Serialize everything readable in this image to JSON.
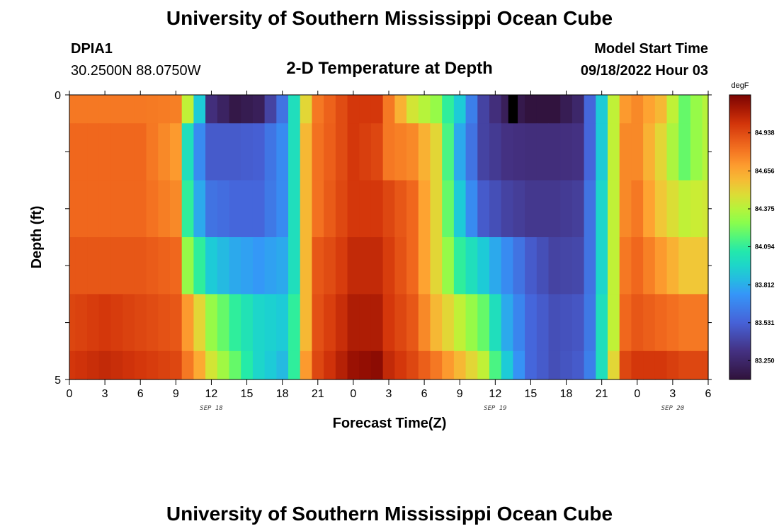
{
  "header": {
    "title": "University of Southern Mississippi Ocean Cube",
    "station_id": "DPIA1",
    "station_coords": "30.2500N  88.0750W",
    "model_start_label": "Model Start Time",
    "model_start_value": "09/18/2022 Hour 03"
  },
  "footer": {
    "title": "University of Southern Mississippi Ocean Cube"
  },
  "chart_data": {
    "type": "heatmap",
    "title": "2-D Temperature at Depth",
    "xlabel": "Forecast Time(Z)",
    "ylabel": "Depth (ft)",
    "colorbar_unit": "degF",
    "colorbar_ticks": [
      "83.250",
      "83.531",
      "83.812",
      "84.094",
      "84.375",
      "84.656",
      "84.938"
    ],
    "colorbar_range": [
      83.11,
      85.22
    ],
    "x_tick_labels": [
      "0",
      "3",
      "6",
      "9",
      "12",
      "15",
      "18",
      "21",
      "0",
      "3",
      "6",
      "9",
      "12",
      "15",
      "18",
      "21",
      "0",
      "3",
      "6"
    ],
    "date_labels": [
      {
        "label": "SEP 18",
        "at_hour": 12
      },
      {
        "label": "SEP 19",
        "at_hour": 36
      },
      {
        "label": "SEP 20",
        "at_hour": 51
      }
    ],
    "y_tick_labels": [
      "0",
      "5"
    ],
    "ylim": [
      0,
      5
    ],
    "x_hours_range": [
      0,
      54
    ],
    "depth_layers": [
      0.0,
      0.5,
      1.5,
      2.5,
      3.5,
      4.5,
      5.0
    ],
    "time_keyframes": [
      0,
      3,
      6,
      9,
      10,
      11,
      12,
      14,
      16,
      18,
      19,
      20,
      21,
      22.5,
      24,
      26,
      27,
      29,
      31,
      33,
      35,
      37,
      39,
      41,
      43,
      44,
      45,
      46,
      47,
      48,
      50,
      52,
      54
    ],
    "temperature_degF": [
      [
        84.8,
        84.8,
        84.8,
        84.78,
        84.4,
        83.9,
        83.3,
        83.15,
        83.2,
        83.6,
        84.0,
        84.5,
        84.8,
        84.9,
        85.0,
        85.0,
        84.8,
        84.45,
        84.3,
        83.9,
        83.4,
        83.2,
        83.12,
        83.12,
        83.25,
        83.55,
        83.9,
        84.4,
        84.7,
        84.75,
        84.6,
        84.2,
        84.4
      ],
      [
        84.85,
        84.85,
        84.85,
        84.7,
        84.0,
        83.7,
        83.5,
        83.5,
        83.52,
        83.7,
        84.0,
        84.6,
        84.82,
        84.9,
        85.0,
        84.95,
        84.8,
        84.75,
        84.5,
        83.8,
        83.4,
        83.32,
        83.3,
        83.3,
        83.32,
        83.55,
        83.9,
        84.4,
        84.75,
        84.75,
        84.5,
        84.2,
        84.4
      ],
      [
        84.85,
        84.85,
        84.85,
        84.75,
        84.1,
        83.8,
        83.6,
        83.55,
        83.55,
        83.7,
        84.0,
        84.6,
        84.82,
        84.92,
        85.0,
        85.0,
        84.95,
        84.85,
        84.5,
        83.9,
        83.5,
        83.4,
        83.35,
        83.35,
        83.38,
        83.6,
        83.95,
        84.4,
        84.75,
        84.8,
        84.55,
        84.4,
        84.45
      ],
      [
        84.9,
        84.9,
        84.9,
        84.85,
        84.3,
        84.1,
        83.9,
        83.8,
        83.75,
        83.8,
        84.0,
        84.6,
        84.9,
        84.95,
        85.05,
        85.05,
        84.98,
        84.85,
        84.5,
        84.1,
        83.9,
        83.7,
        83.5,
        83.4,
        83.42,
        83.6,
        83.95,
        84.4,
        84.8,
        84.85,
        84.7,
        84.55,
        84.55
      ],
      [
        84.95,
        85.0,
        84.95,
        84.9,
        84.7,
        84.5,
        84.3,
        84.1,
        83.95,
        83.9,
        84.1,
        84.6,
        84.92,
        85.0,
        85.1,
        85.1,
        85.0,
        84.9,
        84.6,
        84.4,
        84.2,
        83.8,
        83.55,
        83.45,
        83.48,
        83.62,
        84.0,
        84.4,
        84.85,
        84.9,
        84.85,
        84.8,
        84.8
      ],
      [
        85.0,
        85.05,
        85.0,
        84.95,
        84.8,
        84.65,
        84.45,
        84.2,
        83.95,
        83.85,
        84.1,
        84.7,
        84.95,
        85.05,
        85.15,
        85.18,
        85.05,
        84.95,
        84.8,
        84.6,
        84.4,
        83.9,
        83.55,
        83.45,
        83.5,
        83.65,
        84.0,
        84.5,
        84.95,
        85.0,
        85.0,
        84.95,
        84.95
      ]
    ],
    "missing_marker": {
      "hour": 37.5,
      "layer": 0
    }
  }
}
